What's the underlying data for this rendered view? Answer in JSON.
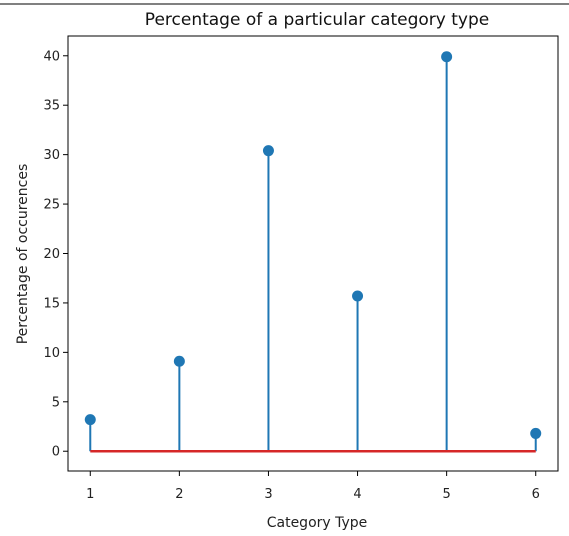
{
  "chart_data": {
    "type": "stem",
    "title": "Percentage of a particular category type",
    "xlabel": "Category Type",
    "ylabel": "Percentage of occurences",
    "x": [
      1,
      2,
      3,
      4,
      5,
      6
    ],
    "values": [
      3.2,
      9.1,
      30.4,
      15.7,
      39.9,
      1.8
    ],
    "xticks": [
      "1",
      "2",
      "3",
      "4",
      "5",
      "6"
    ],
    "yticks": [
      "0",
      "5",
      "10",
      "15",
      "20",
      "25",
      "30",
      "35",
      "40"
    ],
    "xlim": [
      0.75,
      6.25
    ],
    "ylim": [
      -2.0,
      42.0
    ],
    "stem_color": "#1f77b4",
    "baseline_color": "#d62728",
    "grid": false
  }
}
